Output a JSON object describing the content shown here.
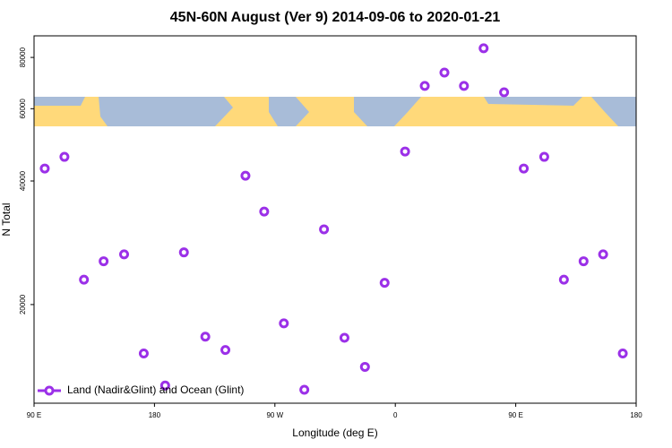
{
  "chart_data": {
    "type": "scatter",
    "title": "45N-60N August (Ver 9)   2014-09-06 to 2020-01-21",
    "xlabel": "Longitude (deg E)",
    "ylabel": "N Total",
    "xlim": [
      90,
      540
    ],
    "xticks": [
      {
        "value": 90,
        "label": "90 E"
      },
      180,
      {
        "value": 270,
        "label": "90 W"
      },
      {
        "value": 360,
        "label": "0"
      },
      {
        "value": 450,
        "label": "90 E"
      },
      {
        "value": 540,
        "label": "180"
      }
    ],
    "ylim": [
      11500,
      90300
    ],
    "yticks": [
      20000,
      40000,
      60000,
      80000
    ],
    "log_y": true,
    "legend": "lower left",
    "series": [
      {
        "name": "Land (Nadir&Glint) and Ocean (Glint)",
        "color": "#9b30e8",
        "x": [
          98,
          112.7,
          127.3,
          142,
          157.3,
          172,
          188,
          202,
          218,
          233,
          248,
          262,
          276.7,
          292,
          306.7,
          322,
          337.3,
          352,
          367.3,
          382,
          396.7,
          411.3,
          426,
          441.3,
          456,
          471.3,
          486,
          500.7,
          515.3,
          530
        ],
        "values": [
          42900,
          45800,
          23000,
          25500,
          26500,
          15200,
          12700,
          26800,
          16700,
          15500,
          41200,
          33700,
          18000,
          12400,
          30500,
          16600,
          14100,
          22600,
          47200,
          68200,
          73500,
          68200,
          84200,
          65800,
          42900,
          45800,
          23000,
          25500,
          26500,
          15200
        ]
      }
    ]
  }
}
